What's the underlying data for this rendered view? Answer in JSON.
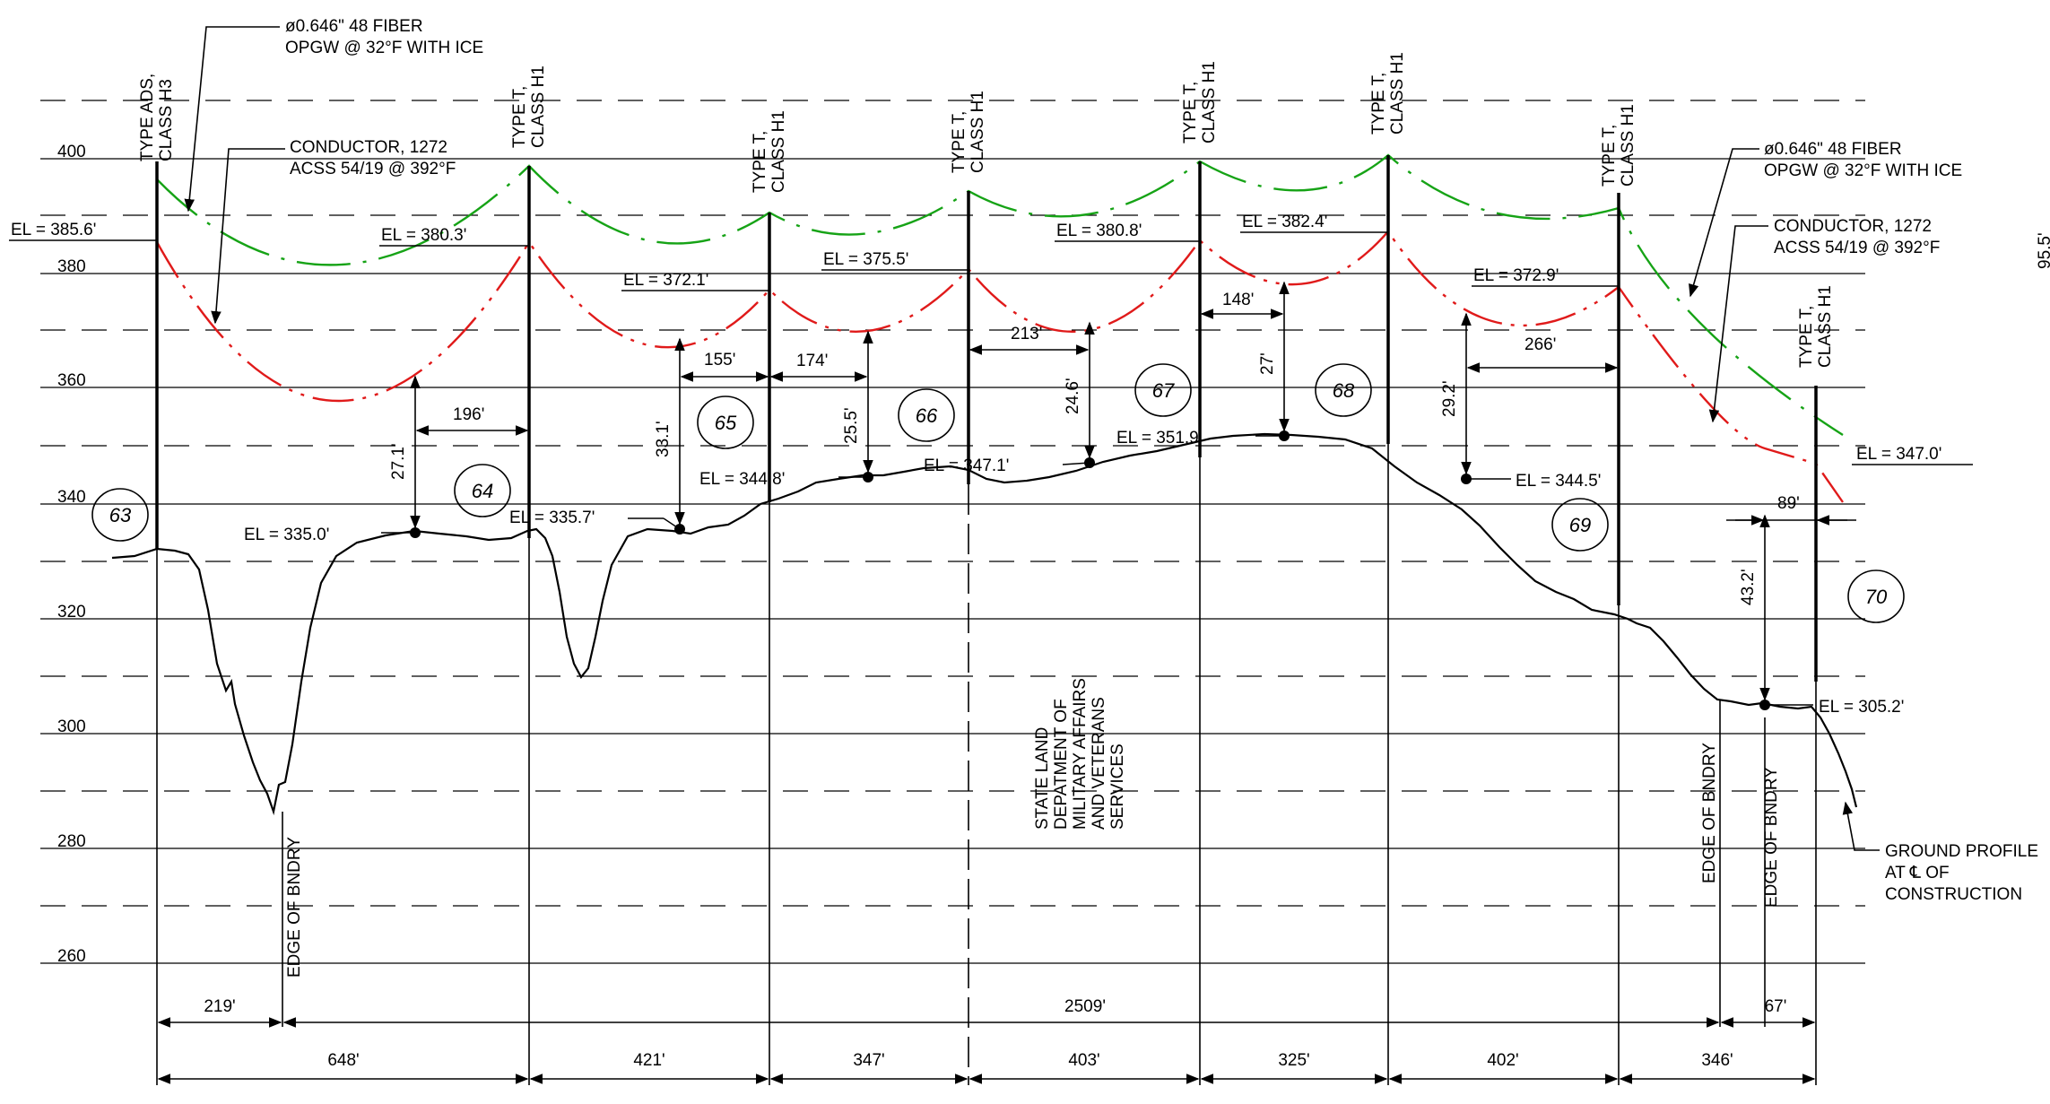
{
  "elevation_ticks": [
    "400",
    "380",
    "360",
    "340",
    "320",
    "300",
    "280",
    "260"
  ],
  "structures": [
    {
      "number": "63",
      "type_line1": "TYPE ADS,",
      "type_line2": "CLASS H3",
      "el_label": "EL = 385.6'"
    },
    {
      "number": "64",
      "type_line1": "TYPE T,",
      "type_line2": "CLASS H1",
      "el_label": "EL = 380.3'"
    },
    {
      "number": "65",
      "type_line1": "TYPE T,",
      "type_line2": "CLASS H1",
      "el_label": "EL = 372.1'"
    },
    {
      "number": "66",
      "type_line1": "TYPE T,",
      "type_line2": "CLASS H1",
      "el_label": "EL = 375.5'"
    },
    {
      "number": "67",
      "type_line1": "TYPE T,",
      "type_line2": "CLASS H1",
      "el_label": "EL = 380.8'"
    },
    {
      "number": "68",
      "type_line1": "TYPE T,",
      "type_line2": "CLASS H1",
      "el_label": "EL = 382.4'"
    },
    {
      "number": "69",
      "type_line1": "TYPE T,",
      "type_line2": "CLASS H1",
      "el_label": "EL = 372.9'"
    },
    {
      "number": "70",
      "type_line1": "TYPE T,",
      "type_line2": "CLASS H1",
      "el_label": "EL = 347.0'"
    }
  ],
  "notes": {
    "opgw_left_1": "ø0.646\" 48 FIBER",
    "opgw_left_2": "OPGW @ 32°F WITH ICE",
    "cond_left_1": "CONDUCTOR, 1272",
    "cond_left_2": "ACSS 54/19 @ 392°F",
    "opgw_right_1": "ø0.646\" 48 FIBER",
    "opgw_right_2": "OPGW @ 32°F WITH ICE",
    "cond_right_1": "CONDUCTOR, 1272",
    "cond_right_2": "ACSS 54/19 @ 392°F",
    "ground_1": "GROUND PROFILE",
    "ground_2": "AT ℄ OF",
    "ground_3": "CONSTRUCTION",
    "state_land_1": "STATE LAND",
    "state_land_2": "DEPATMENT OF",
    "state_land_3": "MILITARY AFFAIRS",
    "state_land_4": "AND VETERANS",
    "state_land_5": "SERVICES",
    "edge_bndry": "EDGE OF BNDRY",
    "edge_cut": "95.5'"
  },
  "low_points": [
    {
      "el": "EL = 335.0'",
      "clearance": "27.1'",
      "offset": "196'"
    },
    {
      "el": "EL = 335.7'",
      "clearance": "33.1'",
      "offset": "155'"
    },
    {
      "el": "EL = 344.8'",
      "clearance": "25.5'",
      "offset": "174'"
    },
    {
      "el": "EL = 347.1'",
      "clearance": "24.6'",
      "offset": "213'"
    },
    {
      "el": "EL = 351.9'",
      "clearance": "27'",
      "offset": "148'"
    },
    {
      "el": "EL = 344.5'",
      "clearance": "29.2'",
      "offset": "266'"
    },
    {
      "el": "EL = 305.2'",
      "clearance": "43.2'",
      "offset": "89'"
    }
  ],
  "dimensions": {
    "row1": [
      "219'",
      "2509'",
      "67'"
    ],
    "spans": [
      "648'",
      "421'",
      "347'",
      "403'",
      "325'",
      "402'",
      "346'"
    ]
  },
  "colors": {
    "opgw": "#16a316",
    "conductor": "#e01a1a",
    "ground": "#000000",
    "grid": "#000000"
  }
}
